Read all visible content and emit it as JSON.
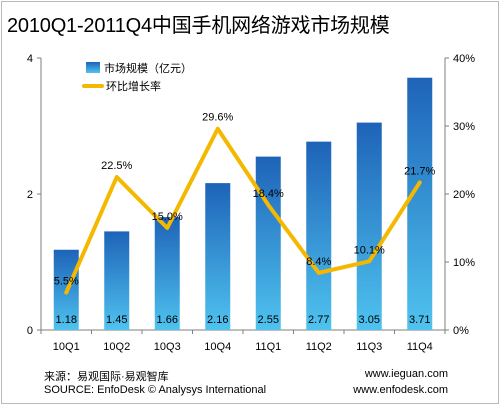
{
  "title": "2010Q1-2011Q4中国手机网络游戏市场规模",
  "footer": {
    "source_cn": "来源：易观国际·易观智库",
    "source_en": "SOURCE: EnfoDesk © Analysys International",
    "site_1": "www.ieguan.com",
    "site_2": "www.enfodesk.com"
  },
  "colors": {
    "bar_top": "#1e63b8",
    "bar_bottom": "#4fc3ef",
    "line": "#f5b800",
    "axis": "#7f7f7f"
  },
  "chart_data": {
    "type": "bar",
    "categories": [
      "10Q1",
      "10Q2",
      "10Q3",
      "10Q4",
      "11Q1",
      "11Q2",
      "11Q3",
      "11Q4"
    ],
    "series": [
      {
        "name": "市场规模（亿元）",
        "type": "bar",
        "axis": "left",
        "values": [
          1.18,
          1.45,
          1.66,
          2.16,
          2.55,
          2.77,
          3.05,
          3.71
        ],
        "labels": [
          "1.18",
          "1.45",
          "1.66",
          "2.16",
          "2.55",
          "2.77",
          "3.05",
          "3.71"
        ]
      },
      {
        "name": "环比增长率",
        "type": "line",
        "axis": "right",
        "values": [
          5.5,
          22.5,
          15.0,
          29.6,
          18.4,
          8.4,
          10.1,
          21.7
        ],
        "labels": [
          "5.5%",
          "22.5%",
          "15.0%",
          "29.6%",
          "18.4%",
          "8.4%",
          "10.1%",
          "21.7%"
        ]
      }
    ],
    "y_left": {
      "min": 0,
      "max": 4,
      "ticks": [
        0,
        2,
        4
      ],
      "tick_labels": [
        "0",
        "2",
        "4"
      ]
    },
    "y_right": {
      "min": 0,
      "max": 40,
      "ticks": [
        0,
        10,
        20,
        30,
        40
      ],
      "tick_labels": [
        "0%",
        "10%",
        "20%",
        "30%",
        "40%"
      ]
    },
    "legend_position": "top-left",
    "grid": false
  }
}
